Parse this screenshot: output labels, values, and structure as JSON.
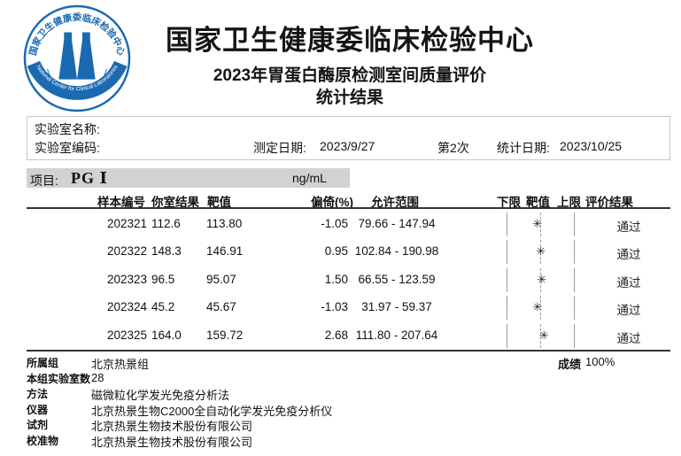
{
  "header": {
    "org_title": "国家卫生健康委临床检验中心",
    "subtitle_line1": "2023年胃蛋白酶原检测室间质量评价",
    "subtitle_line2": "统计结果",
    "logo": {
      "ring_text_zh": "国家卫生健康委临床检验中心",
      "ring_text_en": "National Center for Clinical Laboratories",
      "nccl": "N C C L",
      "color": "#1b6ab1"
    }
  },
  "lab_info": {
    "name_label": "实验室名称:",
    "code_label": "实验室编码:",
    "test_date_label": "测定日期:",
    "test_date": "2023/9/27",
    "round": "第2次",
    "stat_date_label": "统计日期:",
    "stat_date": "2023/10/25"
  },
  "project": {
    "label": "项目:",
    "name": "PG Ⅰ",
    "unit": "ng/mL"
  },
  "table": {
    "headers": [
      "样本编号",
      "你室结果",
      "靶值",
      "偏倚(%)",
      "允许范围",
      "下限",
      "靶值",
      "上限",
      "评价结果"
    ],
    "rows": [
      {
        "sample": "202321",
        "result": "112.6",
        "target": "113.80",
        "bias": "-1.05",
        "bias_value": -1.05,
        "range": "79.66 - 147.94",
        "mark": "✳",
        "evaluation": "通过"
      },
      {
        "sample": "202322",
        "result": "148.3",
        "target": "146.91",
        "bias": "0.95",
        "bias_value": 0.95,
        "range": "102.84 - 190.98",
        "mark": "✳",
        "evaluation": "通过"
      },
      {
        "sample": "202323",
        "result": "96.5",
        "target": "95.07",
        "bias": "1.50",
        "bias_value": 1.5,
        "range": "66.55 - 123.59",
        "mark": "✳",
        "evaluation": "通过"
      },
      {
        "sample": "202324",
        "result": "45.2",
        "target": "45.67",
        "bias": "-1.03",
        "bias_value": -1.03,
        "range": "31.97 - 59.37",
        "mark": "✳",
        "evaluation": "通过"
      },
      {
        "sample": "202325",
        "result": "164.0",
        "target": "159.72",
        "bias": "2.68",
        "bias_value": 2.68,
        "range": "111.80 - 207.64",
        "mark": "✳",
        "evaluation": "通过"
      }
    ]
  },
  "footer": {
    "items": [
      {
        "label": "所属组",
        "value": "北京热景组"
      },
      {
        "label": "本组实验室数",
        "value": "28"
      },
      {
        "label": "方法",
        "value": "磁微粒化学发光免疫分析法"
      },
      {
        "label": "仪器",
        "value": "北京热景生物C2000全自动化学发光免疫分析仪"
      },
      {
        "label": "试剂",
        "value": "北京热景生物技术股份有限公司"
      },
      {
        "label": "校准物",
        "value": "北京热景生物技术股份有限公司"
      }
    ],
    "score_label": "成绩",
    "score_value": "100%"
  }
}
